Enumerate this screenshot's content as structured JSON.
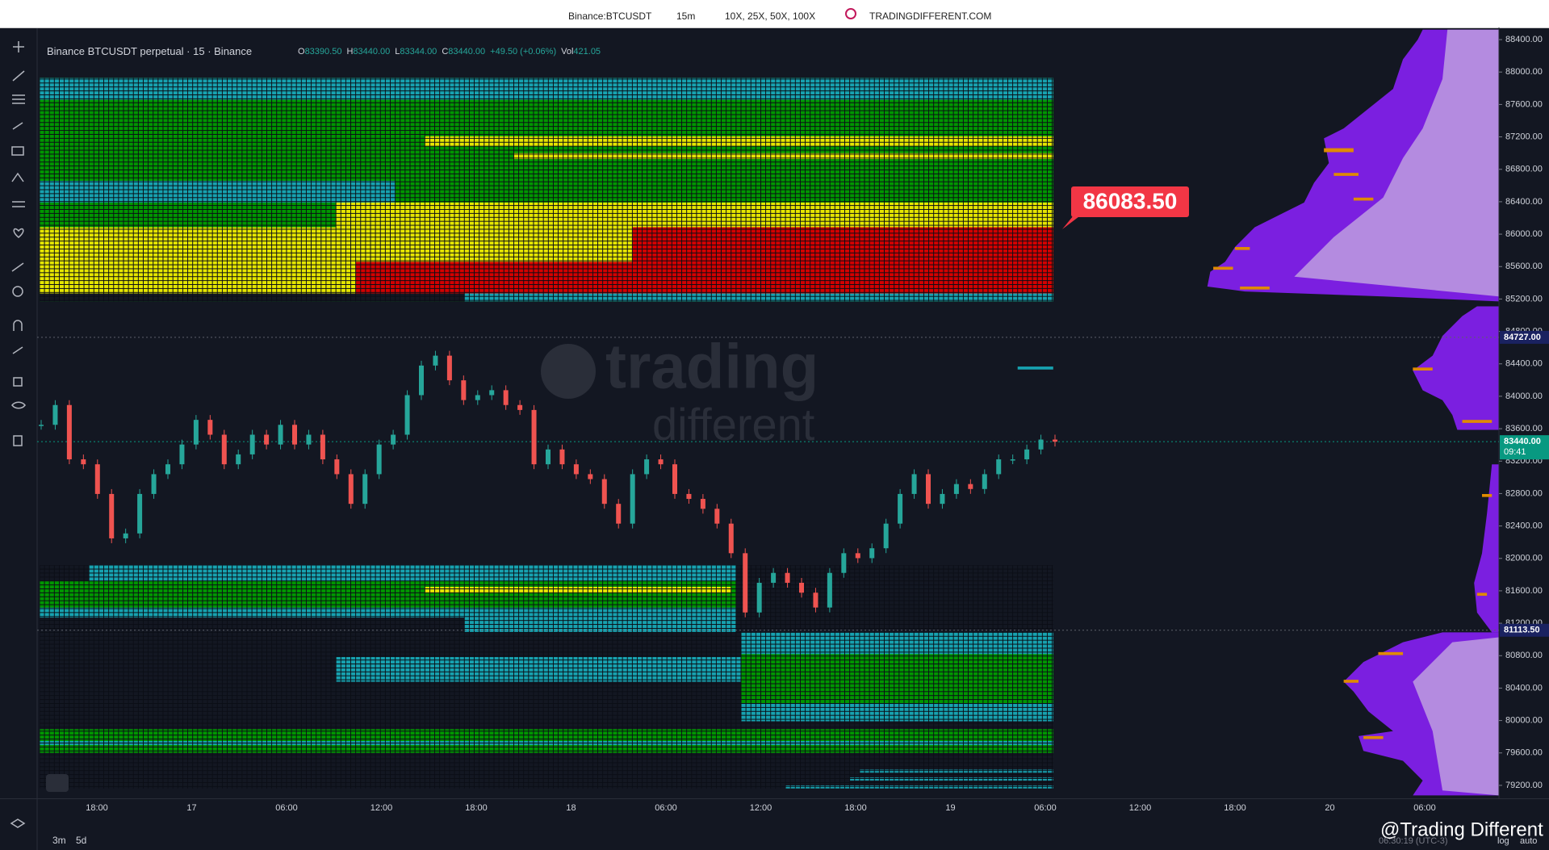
{
  "top_bar": {
    "symbol": "Binance:BTCUSDT",
    "interval": "15m",
    "leverage": "10X, 25X, 50X, 100X",
    "site": "TRADINGDIFFERENT.COM"
  },
  "legend": {
    "title": "Binance BTCUSDT perpetual · 15 · Binance",
    "o_label": "O",
    "o": "83390.50",
    "h_label": "H",
    "h": "83440.00",
    "l_label": "L",
    "l": "83344.00",
    "c_label": "C",
    "c": "83440.00",
    "change": "+49.50 (+0.06%)",
    "vol_label": "Vol",
    "vol": "421.05"
  },
  "watermark": {
    "line1": "trading",
    "line2": "different",
    "handle": "@Trading Different"
  },
  "bottom_bar": {
    "range1": "3m",
    "range2": "5d",
    "clock": "06:30:19 (UTC-3)",
    "log": "log",
    "auto": "auto"
  },
  "callout": "86083.50",
  "chart_data": {
    "type": "candlestick",
    "close": [
      83648,
      83892,
      83222,
      83161,
      82795,
      82247,
      82308,
      82795,
      83039,
      83161,
      83405,
      83709,
      83526,
      83161,
      83283,
      83526,
      83405,
      83648,
      83405,
      83526,
      83222,
      83039,
      82673,
      83039,
      83405,
      83526,
      84014,
      84379,
      84501,
      84197,
      83953,
      84014,
      84075,
      83892,
      83831,
      83161,
      83344,
      83161,
      83039,
      82978,
      82673,
      82429,
      83039,
      83222,
      83161,
      82795,
      82734,
      82612,
      82429,
      82064,
      81333,
      81699,
      81821,
      81699,
      81577,
      81394,
      81821,
      82064,
      82003,
      82125,
      82429,
      82795,
      83039,
      82673,
      82795,
      82917,
      82856,
      83039,
      83222,
      83222,
      83344,
      83466,
      83440
    ],
    "ylim": [
      79040,
      88550
    ],
    "yticks": [
      {
        "value": 79200,
        "label": "79200.00"
      },
      {
        "value": 79600,
        "label": "79600.00"
      },
      {
        "value": 80000,
        "label": "80000.00"
      },
      {
        "value": 80400,
        "label": "80400.00"
      },
      {
        "value": 80800,
        "label": "80800.00"
      },
      {
        "value": 81200,
        "label": "81200.00"
      },
      {
        "value": 81600,
        "label": "81600.00"
      },
      {
        "value": 82000,
        "label": "82000.00"
      },
      {
        "value": 82400,
        "label": "82400.00"
      },
      {
        "value": 82800,
        "label": "82800.00"
      },
      {
        "value": 83200,
        "label": "83200.00"
      },
      {
        "value": 83600,
        "label": "83600.00"
      },
      {
        "value": 84000,
        "label": "84000.00"
      },
      {
        "value": 84400,
        "label": "84400.00"
      },
      {
        "value": 84800,
        "label": "84800.00"
      },
      {
        "value": 85200,
        "label": "85200.00"
      },
      {
        "value": 85600,
        "label": "85600.00"
      },
      {
        "value": 86000,
        "label": "86000.00"
      },
      {
        "value": 86400,
        "label": "86400.00"
      },
      {
        "value": 86800,
        "label": "86800.00"
      },
      {
        "value": 87200,
        "label": "87200.00"
      },
      {
        "value": 87600,
        "label": "87600.00"
      },
      {
        "value": 88000,
        "label": "88000.00"
      },
      {
        "value": 88400,
        "label": "88400.00"
      }
    ],
    "x_labels": [
      "18:00",
      "17",
      "06:00",
      "12:00",
      "18:00",
      "18",
      "06:00",
      "12:00",
      "18:00",
      "19",
      "06:00",
      "12:00",
      "18:00",
      "20",
      "06:00"
    ],
    "price_labels": [
      {
        "value": 84727,
        "label": "84727.00",
        "color": "#1a2260"
      },
      {
        "value": 83440,
        "label": "83440.00",
        "sub": "09:41",
        "color": "#089981"
      },
      {
        "value": 81113.5,
        "label": "81113.50",
        "color": "#1a2260"
      }
    ],
    "up_color": "#26a69a",
    "down_color": "#ef5350"
  }
}
